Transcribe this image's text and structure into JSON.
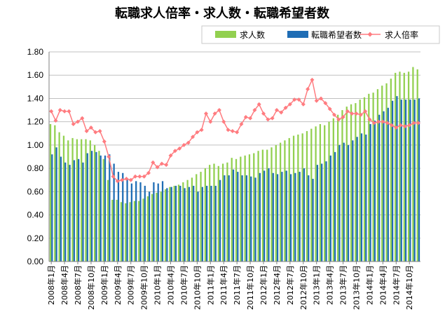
{
  "chart_data": {
    "type": "bar+line",
    "title": "転職求人倍率・求人数・転職希望者数",
    "ylim": [
      0,
      1.8
    ],
    "yticks": [
      "0.00",
      "0.20",
      "0.40",
      "0.60",
      "0.80",
      "1.00",
      "1.20",
      "1.40",
      "1.60",
      "1.80"
    ],
    "grid": true,
    "legend_position": "top-right",
    "colors": {
      "jobs": "#92D050",
      "seekers": "#1F6DB5",
      "ratio": "#FF7C80",
      "grid": "#C0C0C0"
    },
    "x_tick_labels": [
      "2008年1月",
      "2008年4月",
      "2008年7月",
      "2008年10月",
      "2009年1月",
      "2009年4月",
      "2009年7月",
      "2009年10月",
      "2010年1月",
      "2010年4月",
      "2010年7月",
      "2010年10月",
      "2011年1月",
      "2011年4月",
      "2011年7月",
      "2011年10月",
      "2012年1月",
      "2012年4月",
      "2012年7月",
      "2012年10月",
      "2013年1月",
      "2013年4月",
      "2013年7月",
      "2013年10月",
      "2014年1月",
      "2014年4月",
      "2014年7月",
      "2014年10月"
    ],
    "series": [
      {
        "name": "求人数",
        "kind": "bar",
        "values": [
          1.18,
          1.17,
          1.11,
          1.08,
          1.04,
          1.06,
          1.05,
          1.05,
          1.05,
          1.04,
          1.0,
          0.95,
          0.88,
          0.7,
          0.53,
          0.53,
          0.51,
          0.5,
          0.51,
          0.52,
          0.52,
          0.54,
          0.56,
          0.58,
          0.59,
          0.6,
          0.62,
          0.64,
          0.65,
          0.66,
          0.68,
          0.7,
          0.72,
          0.75,
          0.77,
          0.8,
          0.83,
          0.84,
          0.82,
          0.84,
          0.85,
          0.89,
          0.88,
          0.9,
          0.91,
          0.92,
          0.93,
          0.95,
          0.96,
          0.96,
          0.98,
          1.0,
          1.02,
          1.04,
          1.06,
          1.08,
          1.09,
          1.1,
          1.12,
          1.14,
          1.16,
          1.18,
          1.17,
          1.2,
          1.23,
          1.26,
          1.3,
          1.33,
          1.35,
          1.36,
          1.39,
          1.41,
          1.44,
          1.45,
          1.48,
          1.51,
          1.53,
          1.57,
          1.62,
          1.63,
          1.62,
          1.63,
          1.67,
          1.65
        ]
      },
      {
        "name": "転職希望者数",
        "kind": "bar",
        "values": [
          0.92,
          0.98,
          0.9,
          0.85,
          0.83,
          0.87,
          0.88,
          0.85,
          0.93,
          0.95,
          0.94,
          0.91,
          0.91,
          0.92,
          0.84,
          0.77,
          0.76,
          0.71,
          0.67,
          0.69,
          0.68,
          0.65,
          0.6,
          0.68,
          0.67,
          0.69,
          0.63,
          0.64,
          0.65,
          0.65,
          0.63,
          0.64,
          0.65,
          0.6,
          0.64,
          0.65,
          0.65,
          0.65,
          0.7,
          0.74,
          0.74,
          0.79,
          0.77,
          0.74,
          0.74,
          0.73,
          0.72,
          0.76,
          0.78,
          0.8,
          0.76,
          0.75,
          0.77,
          0.78,
          0.75,
          0.76,
          0.77,
          0.8,
          0.74,
          0.71,
          0.83,
          0.84,
          0.86,
          0.91,
          0.94,
          1.0,
          1.02,
          1.0,
          1.04,
          1.07,
          1.1,
          1.09,
          1.18,
          1.21,
          1.26,
          1.29,
          1.32,
          1.38,
          1.42,
          1.39,
          1.39,
          1.39,
          1.39,
          1.4
        ]
      },
      {
        "name": "求人倍率",
        "kind": "line",
        "values": [
          1.29,
          1.21,
          1.3,
          1.29,
          1.29,
          1.18,
          1.2,
          1.23,
          1.12,
          1.15,
          1.11,
          1.12,
          1.03,
          0.9,
          0.73,
          0.69,
          0.7,
          0.71,
          0.7,
          0.73,
          0.73,
          0.73,
          0.76,
          0.85,
          0.81,
          0.84,
          0.83,
          0.91,
          0.95,
          0.97,
          1.0,
          1.02,
          1.07,
          1.11,
          1.13,
          1.27,
          1.2,
          1.27,
          1.3,
          1.2,
          1.13,
          1.12,
          1.11,
          1.18,
          1.24,
          1.23,
          1.3,
          1.35,
          1.27,
          1.22,
          1.23,
          1.3,
          1.28,
          1.32,
          1.35,
          1.39,
          1.39,
          1.35,
          1.48,
          1.56,
          1.38,
          1.4,
          1.36,
          1.31,
          1.26,
          1.22,
          1.24,
          1.29,
          1.27,
          1.27,
          1.26,
          1.29,
          1.22,
          1.19,
          1.2,
          1.2,
          1.19,
          1.17,
          1.15,
          1.17,
          1.16,
          1.17,
          1.19,
          1.19
        ]
      }
    ]
  }
}
